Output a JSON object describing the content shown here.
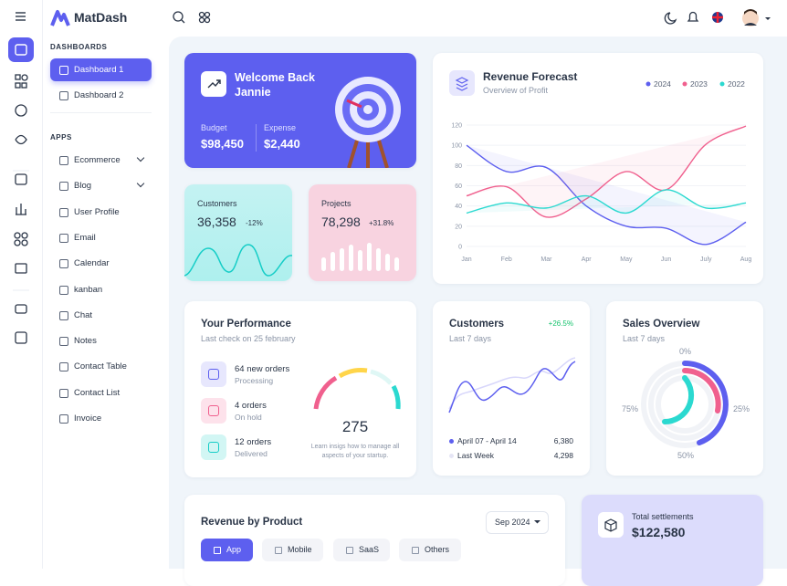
{
  "brand": "MatDash",
  "sidebar": {
    "sections": [
      {
        "heading": "DASHBOARDS",
        "items": [
          "Dashboard 1",
          "Dashboard 2"
        ]
      },
      {
        "heading": "APPS",
        "items": [
          "Ecommerce",
          "Blog",
          "User Profile",
          "Email",
          "Calendar",
          "kanban",
          "Chat",
          "Notes",
          "Contact Table",
          "Contact List",
          "Invoice"
        ]
      }
    ]
  },
  "welcome": {
    "title": "Welcome Back Jannie",
    "budget_label": "Budget",
    "budget": "$98,450",
    "expense_label": "Expense",
    "expense": "$2,440"
  },
  "customers_card": {
    "label": "Customers",
    "value": "36,358",
    "change": "-12%"
  },
  "projects_card": {
    "label": "Projects",
    "value": "78,298",
    "change": "+31.8%"
  },
  "revenue_forecast": {
    "title": "Revenue Forecast",
    "subtitle": "Overview of Profit",
    "chart_data": {
      "type": "line",
      "categories": [
        "Jan",
        "Feb",
        "Mar",
        "Apr",
        "May",
        "Jun",
        "July",
        "Aug"
      ],
      "ylim": [
        0,
        120
      ],
      "yticks": [
        0,
        20,
        40,
        60,
        80,
        100,
        120
      ],
      "series": [
        {
          "name": "2024",
          "color": "#5d5fef",
          "values": [
            100,
            74,
            78,
            40,
            20,
            18,
            2,
            24
          ]
        },
        {
          "name": "2023",
          "color": "#f0608e",
          "values": [
            50,
            59,
            29,
            47,
            74,
            56,
            101,
            119
          ]
        },
        {
          "name": "2022",
          "color": "#2bd9d0",
          "values": [
            33,
            43,
            38,
            50,
            33,
            56,
            38,
            43
          ]
        }
      ]
    }
  },
  "performance": {
    "title": "Your Performance",
    "subtitle": "Last check on 25 february",
    "items": [
      {
        "title": "64 new orders",
        "status": "Processing"
      },
      {
        "title": "4 orders",
        "status": "On hold"
      },
      {
        "title": "12 orders",
        "status": "Delivered"
      }
    ],
    "gauge_value": "275",
    "note": "Learn insigs how to manage all aspects of your startup."
  },
  "customers": {
    "title": "Customers",
    "change": "+26.5%",
    "subtitle": "Last 7 days",
    "rows": [
      {
        "label": "April 07 - April 14",
        "value": "6,380"
      },
      {
        "label": "Last Week",
        "value": "4,298"
      }
    ]
  },
  "sales_overview": {
    "title": "Sales Overview",
    "subtitle": "Last 7 days",
    "labels": [
      "0%",
      "25%",
      "50%",
      "75%"
    ]
  },
  "revenue_by_product": {
    "title": "Revenue by Product",
    "period": "Sep 2024",
    "tabs": [
      "App",
      "Mobile",
      "SaaS",
      "Others"
    ]
  },
  "settlements": {
    "label": "Total settlements",
    "value": "$122,580"
  }
}
